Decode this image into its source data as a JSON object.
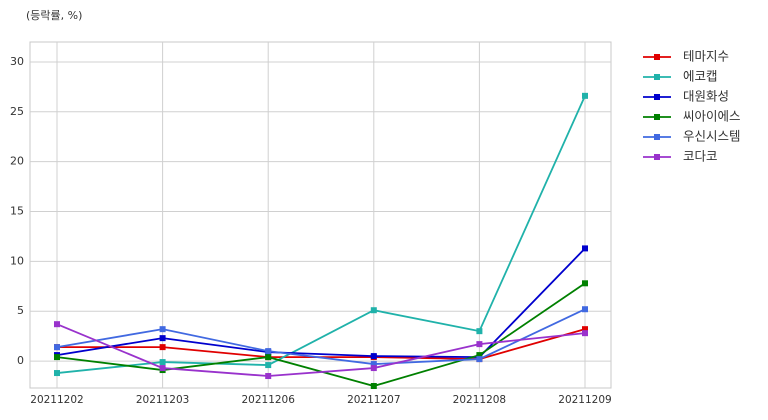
{
  "chart_data": {
    "type": "line",
    "y_label": "(등락률, %)",
    "categories": [
      "20211202",
      "20211203",
      "20211206",
      "20211207",
      "20211208",
      "20211209"
    ],
    "series": [
      {
        "name": "테마지수",
        "color": "#e00000",
        "values": [
          1.4,
          1.4,
          0.4,
          0.4,
          0.2,
          3.2
        ]
      },
      {
        "name": "에코캡",
        "color": "#20b2aa",
        "values": [
          -1.2,
          -0.1,
          -0.4,
          5.1,
          3.0,
          26.6
        ]
      },
      {
        "name": "대원화성",
        "color": "#0000cd",
        "values": [
          0.6,
          2.3,
          0.9,
          0.5,
          0.4,
          11.3
        ]
      },
      {
        "name": "씨아이에스",
        "color": "#008000",
        "values": [
          0.4,
          -0.9,
          0.4,
          -2.5,
          0.6,
          7.8
        ]
      },
      {
        "name": "우신시스템",
        "color": "#4169e1",
        "values": [
          1.4,
          3.2,
          1.0,
          -0.3,
          0.2,
          5.2
        ]
      },
      {
        "name": "코다코",
        "color": "#9932cc",
        "values": [
          3.7,
          -0.7,
          -1.5,
          -0.7,
          1.7,
          2.8
        ]
      }
    ],
    "ylim": [
      -2.7,
      32
    ],
    "yticks": [
      0,
      5,
      10,
      15,
      20,
      25,
      30
    ],
    "grid": true,
    "legend": "outside-right"
  }
}
